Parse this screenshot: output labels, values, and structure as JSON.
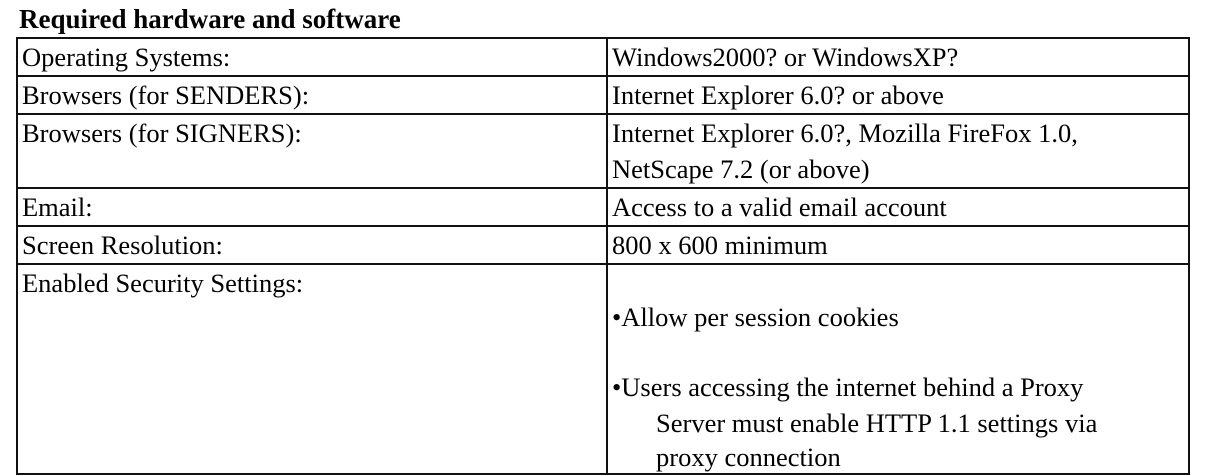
{
  "title": "Required hardware and software",
  "rows": [
    {
      "label": "Operating Systems:",
      "value": [
        "Windows2000? or WindowsXP?"
      ]
    },
    {
      "label": "Browsers (for SENDERS):",
      "value": [
        "Internet Explorer 6.0? or above"
      ]
    },
    {
      "label": "Browsers (for SIGNERS):",
      "value": [
        "Internet Explorer 6.0?, Mozilla FireFox 1.0,",
        "NetScape 7.2 (or above)"
      ]
    },
    {
      "label": "Email:",
      "value": [
        "Access to a valid email account"
      ]
    },
    {
      "label": "Screen Resolution:",
      "value": [
        "800 x 600 minimum"
      ]
    },
    {
      "label": "Enabled Security Settings:",
      "bullets": [
        [
          "•Allow per session cookies"
        ],
        [
          "•Users accessing the internet behind a Proxy",
          "Server must enable HTTP 1.1 settings via",
          "proxy connection"
        ]
      ]
    }
  ]
}
